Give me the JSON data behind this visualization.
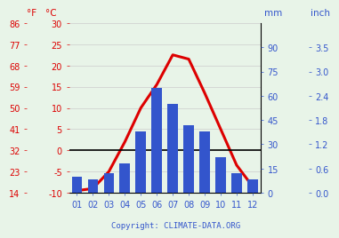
{
  "months": [
    "01",
    "02",
    "03",
    "04",
    "05",
    "06",
    "07",
    "08",
    "09",
    "10",
    "11",
    "12"
  ],
  "precipitation_mm": [
    10,
    8,
    12,
    18,
    38,
    65,
    55,
    42,
    38,
    22,
    12,
    8
  ],
  "temp_avg_c": [
    -9.5,
    -9.0,
    -5.0,
    2.0,
    10.0,
    15.5,
    22.5,
    21.5,
    13.5,
    5.0,
    -3.5,
    -8.5
  ],
  "bar_color": "#3355cc",
  "line_color": "#dd0000",
  "background_color": "#e8f4e8",
  "left_axis_ticks_c": [
    -10,
    -5,
    0,
    5,
    10,
    15,
    20,
    25,
    30
  ],
  "left_axis_ticks_f": [
    14,
    23,
    32,
    41,
    50,
    59,
    68,
    77,
    86
  ],
  "right_axis_ticks_mm": [
    0,
    15,
    30,
    45,
    60,
    75,
    90
  ],
  "right_axis_ticks_inch": [
    "0.0",
    "0.6",
    "1.2",
    "1.8",
    "2.4",
    "3.0",
    "3.5"
  ],
  "temp_ylim": [
    -10,
    30
  ],
  "precip_ylim": [
    0,
    105
  ],
  "blue_color": "#3355cc",
  "red_color": "#dd0000",
  "copyright": "Copyright: CLIMATE-DATA.ORG",
  "label_mm": "mm",
  "label_inch": "inch",
  "label_F": "°F",
  "label_C": "°C",
  "grid_color": "#cccccc",
  "fontsize_ticks": 7,
  "fontsize_labels": 7.5
}
